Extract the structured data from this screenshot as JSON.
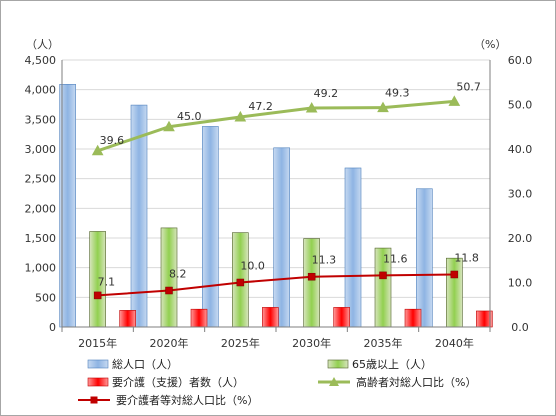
{
  "chart_data": {
    "type": "bar",
    "categories": [
      "2015年",
      "2020年",
      "2025年",
      "2030年",
      "2035年",
      "2040年"
    ],
    "left_axis": {
      "unit": "（人）",
      "ylim": [
        0,
        4500
      ],
      "ticks": [
        "0",
        "500",
        "1,000",
        "1,500",
        "2,000",
        "2,500",
        "3,000",
        "3,500",
        "4,000",
        "4,500"
      ]
    },
    "right_axis": {
      "unit": "（%）",
      "ylim": [
        0,
        60
      ],
      "ticks": [
        "0.0",
        "10.0",
        "20.0",
        "30.0",
        "40.0",
        "50.0",
        "60.0"
      ]
    },
    "grid": true,
    "legend_position": "bottom",
    "series": [
      {
        "name": "総人口（人）",
        "type": "bar",
        "axis": "left",
        "color": "#8eb4e3",
        "values": [
          4090,
          3740,
          3380,
          3020,
          2680,
          2330
        ]
      },
      {
        "name": "65歳以上（人）",
        "type": "bar",
        "axis": "left",
        "color": "#92d050",
        "values": [
          1610,
          1670,
          1590,
          1490,
          1330,
          1160
        ]
      },
      {
        "name": "要介護（支援）者数（人）",
        "type": "bar",
        "axis": "left",
        "color": "#ff0000",
        "values": [
          280,
          300,
          330,
          330,
          300,
          270
        ]
      },
      {
        "name": "高齢者対総人口比（%）",
        "type": "line",
        "axis": "right",
        "color": "#9bbb59",
        "marker": "triangle",
        "values": [
          39.6,
          45.0,
          47.2,
          49.2,
          49.3,
          50.7
        ],
        "labels": [
          "39.6",
          "45.0",
          "47.2",
          "49.2",
          "49.3",
          "50.7"
        ]
      },
      {
        "name": "要介護者等対総人口比（%）",
        "type": "line",
        "axis": "right",
        "color": "#c00000",
        "marker": "square",
        "values": [
          7.1,
          8.2,
          10.0,
          11.3,
          11.6,
          11.8
        ],
        "labels": [
          "7.1",
          "8.2",
          "10.0",
          "11.3",
          "11.6",
          "11.8"
        ]
      }
    ]
  }
}
